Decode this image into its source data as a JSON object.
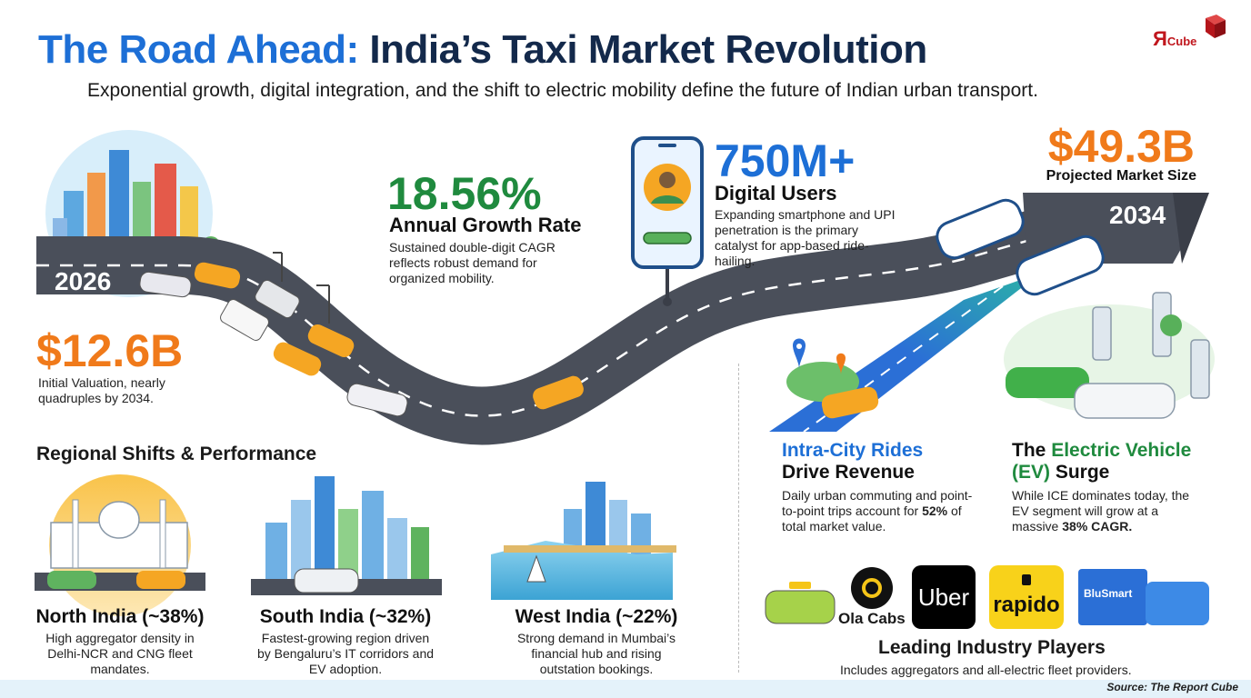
{
  "header": {
    "title_part1": "The Road Ahead:",
    "title_part2": "India’s Taxi Market Revolution",
    "subtitle": "Exponential growth, digital integration, and the shift to electric mobility define the future of Indian urban transport.",
    "logo_text": "R",
    "logo_suffix": "Cube"
  },
  "timeline": {
    "start_year": "2026",
    "end_year": "2034"
  },
  "stats": {
    "initial": {
      "value": "$12.6B",
      "desc": "Initial Valuation, nearly quadruples by 2034."
    },
    "growth": {
      "value": "18.56%",
      "label": "Annual Growth Rate",
      "desc": "Sustained double-digit CAGR reflects robust demand for organized mobility."
    },
    "users": {
      "value": "750M+",
      "label": "Digital Users",
      "desc": "Expanding smartphone and UPI penetration is the primary catalyst for app-based ride-hailing."
    },
    "projected": {
      "value": "$49.3B",
      "label": "Projected Market Size"
    }
  },
  "regional": {
    "heading": "Regional Shifts & Performance",
    "regions": [
      {
        "name": "North India (~38%)",
        "desc": "High aggregator density in Delhi-NCR and CNG fleet mandates."
      },
      {
        "name": "South India (~32%)",
        "desc": "Fastest-growing region driven by Bengaluru’s IT corridors and EV adoption."
      },
      {
        "name": "West India (~22%)",
        "desc": "Strong demand in Mumbai’s financial hub and rising outstation bookings."
      }
    ]
  },
  "insights": {
    "intracity": {
      "title_blue": "Intra-City Rides",
      "title_dark": "Drive Revenue",
      "desc_pre": "Daily urban commuting and point-to-point trips account for",
      "desc_bold": "52%",
      "desc_post": "of total market value."
    },
    "ev": {
      "title_pre": "The",
      "title_green1": "Electric Vehicle",
      "title_green2": "(EV)",
      "title_post": "Surge",
      "desc_pre": "While ICE dominates today, the EV segment will grow at a massive",
      "desc_bold": "38% CAGR."
    }
  },
  "players": {
    "ola": "Ola Cabs",
    "uber": "Uber",
    "rapido": "rapido",
    "blusmart": "BluSmart",
    "heading": "Leading Industry Players",
    "desc": "Includes aggregators and all-electric fleet providers."
  },
  "source": "Source: The Report Cube",
  "colors": {
    "blue": "#1d6fd6",
    "navy": "#13294b",
    "orange": "#f07a1a",
    "green": "#1f8a3e",
    "road": "#4a4f5a"
  }
}
